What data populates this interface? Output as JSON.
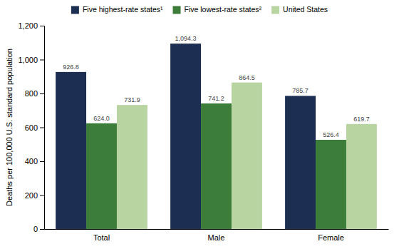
{
  "chart_data": {
    "type": "bar",
    "categories": [
      "Total",
      "Male",
      "Female"
    ],
    "series": [
      {
        "name": "Five highest-rate states¹",
        "color": "#1c2f52",
        "values": [
          926.8,
          1094.3,
          785.7
        ],
        "value_labels": [
          "926.8",
          "1,094.3",
          "785.7"
        ]
      },
      {
        "name": "Five lowest-rate states²",
        "color": "#3d7d3a",
        "values": [
          624.0,
          741.2,
          526.4
        ],
        "value_labels": [
          "624.0",
          "741.2",
          "526.4"
        ]
      },
      {
        "name": "United States",
        "color": "#b8d4a0",
        "values": [
          731.9,
          864.5,
          619.7
        ],
        "value_labels": [
          "731.9",
          "864.5",
          "619.7"
        ]
      }
    ],
    "ylabel": "Deaths per 100,000 U.S. standard population",
    "ylim": [
      0,
      1200
    ],
    "yticks": [
      0,
      200,
      400,
      600,
      800,
      {
        "value": 1000,
        "label": "1,000"
      },
      {
        "value": 1200,
        "label": "1,200"
      }
    ],
    "grid": false,
    "legend": "top",
    "data_labels": true
  }
}
